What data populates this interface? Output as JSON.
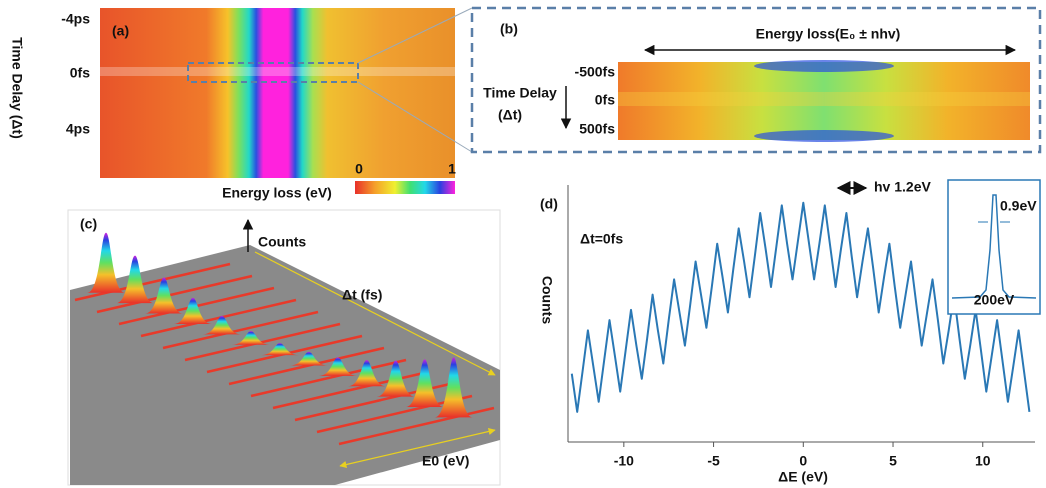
{
  "figure": {
    "y_axis_label": "Time Delay (Δt)"
  },
  "panel_a": {
    "label": "(a)",
    "time_ticks": [
      "-4ps",
      "0fs",
      "4ps"
    ],
    "colorbar_ticks": [
      0,
      1
    ],
    "x_axis_label": "Energy loss (eV)"
  },
  "panel_b": {
    "label": "(b)",
    "title": "Energy loss(E₀ ± nhv)",
    "time_ticks": [
      "-500fs",
      "0fs",
      "500fs"
    ],
    "y_axis_label": [
      "Time Delay",
      "(Δt)"
    ]
  },
  "panel_c": {
    "label": "(c)",
    "z_axis_label": "Counts",
    "y_axis_label": "Δt (fs)",
    "x_axis_label": "E0 (eV)"
  },
  "chart_data": {
    "type": "line",
    "panel_label": "(d)",
    "annotation": "Δt=0fs",
    "spacing_label": "hv 1.2eV",
    "inset_labels": [
      "0.9eV",
      "200eV"
    ],
    "xlabel": "ΔE (eV)",
    "ylabel": "Counts",
    "color": "#2a78b5",
    "xlim": [
      -13,
      12.8
    ],
    "ylim": [
      0,
      1
    ],
    "xticks": [
      -10,
      -5,
      0,
      5,
      10
    ],
    "x": [
      -12.9,
      -12.6,
      -12.3,
      -12.0,
      -11.7,
      -11.4,
      -11.1,
      -10.8,
      -10.5,
      -10.2,
      -9.9,
      -9.6,
      -9.3,
      -9.0,
      -8.7,
      -8.4,
      -8.1,
      -7.8,
      -7.5,
      -7.2,
      -6.9,
      -6.6,
      -6.3,
      -6.0,
      -5.7,
      -5.4,
      -5.1,
      -4.8,
      -4.5,
      -4.2,
      -3.9,
      -3.6,
      -3.3,
      -3.0,
      -2.7,
      -2.4,
      -2.1,
      -1.8,
      -1.5,
      -1.2,
      -0.9,
      -0.6,
      -0.3,
      0.0,
      0.3,
      0.6,
      0.9,
      1.2,
      1.5,
      1.8,
      2.1,
      2.4,
      2.7,
      3.0,
      3.3,
      3.6,
      3.9,
      4.2,
      4.5,
      4.8,
      5.1,
      5.4,
      5.7,
      6.0,
      6.3,
      6.6,
      6.9,
      7.2,
      7.5,
      7.8,
      8.1,
      8.4,
      8.7,
      9.0,
      9.3,
      9.6,
      9.9,
      10.2,
      10.5,
      10.8,
      11.1,
      11.4,
      11.7,
      12.0,
      12.3,
      12.6
    ],
    "values": [
      0.26,
      0.11,
      0.27,
      0.43,
      0.29,
      0.15,
      0.31,
      0.47,
      0.33,
      0.19,
      0.35,
      0.51,
      0.37,
      0.24,
      0.4,
      0.57,
      0.43,
      0.3,
      0.47,
      0.63,
      0.5,
      0.37,
      0.53,
      0.7,
      0.57,
      0.44,
      0.6,
      0.77,
      0.64,
      0.5,
      0.67,
      0.83,
      0.7,
      0.56,
      0.72,
      0.89,
      0.75,
      0.6,
      0.76,
      0.92,
      0.77,
      0.63,
      0.78,
      0.93,
      0.78,
      0.63,
      0.77,
      0.92,
      0.76,
      0.6,
      0.75,
      0.89,
      0.72,
      0.56,
      0.7,
      0.83,
      0.67,
      0.5,
      0.64,
      0.77,
      0.6,
      0.44,
      0.57,
      0.7,
      0.53,
      0.37,
      0.5,
      0.63,
      0.47,
      0.3,
      0.43,
      0.57,
      0.4,
      0.24,
      0.37,
      0.51,
      0.35,
      0.19,
      0.33,
      0.47,
      0.31,
      0.15,
      0.29,
      0.43,
      0.27,
      0.11
    ]
  }
}
